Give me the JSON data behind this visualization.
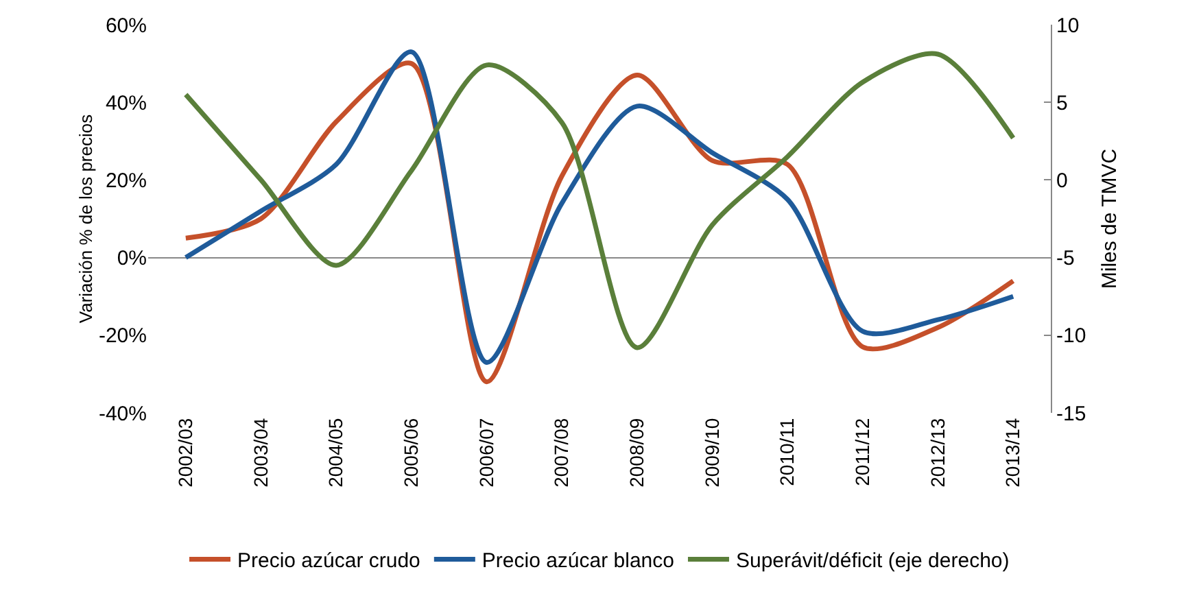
{
  "chart_data": {
    "type": "line",
    "ylabel": "Variación % de los precios",
    "y2label": "Miles de TMVC",
    "categories": [
      "2002/03",
      "2003/04",
      "2004/05",
      "2005/06",
      "2006/07",
      "2007/08",
      "2008/09",
      "2009/10",
      "2010/11",
      "2011/12",
      "2012/13",
      "2013/14"
    ],
    "series": [
      {
        "name": "Precio azúcar crudo",
        "color": "#c5502a",
        "values": [
          5,
          10,
          35,
          50,
          -32,
          21,
          47,
          25,
          24,
          -23,
          -18,
          -6
        ]
      },
      {
        "name": "Precio azúcar blanco",
        "color": "#1f5b9a",
        "values": [
          0,
          12,
          24,
          53,
          -27,
          14,
          39,
          27,
          15,
          -19,
          -16,
          -10
        ]
      },
      {
        "name": "Superávit/déficit (eje derecho)",
        "color": "#5a7f3a",
        "axis": "y2",
        "values": [
          5.5,
          0,
          -5.5,
          0.6,
          7.4,
          3.7,
          -10.8,
          -2.9,
          1.5,
          6.3,
          8.1,
          2.7
        ]
      }
    ],
    "ylim": [
      -40,
      60
    ],
    "yticks": [
      {
        "value": -40,
        "label": "-40%"
      },
      {
        "value": -20,
        "label": "-20%"
      },
      {
        "value": 0,
        "label": "0%"
      },
      {
        "value": 20,
        "label": "20%"
      },
      {
        "value": 40,
        "label": "40%"
      },
      {
        "value": 60,
        "label": "60%"
      }
    ],
    "y2lim": [
      -15,
      10
    ],
    "y2ticks": [
      -15,
      -10,
      -5,
      0,
      5,
      10
    ],
    "legend": "bottom"
  }
}
